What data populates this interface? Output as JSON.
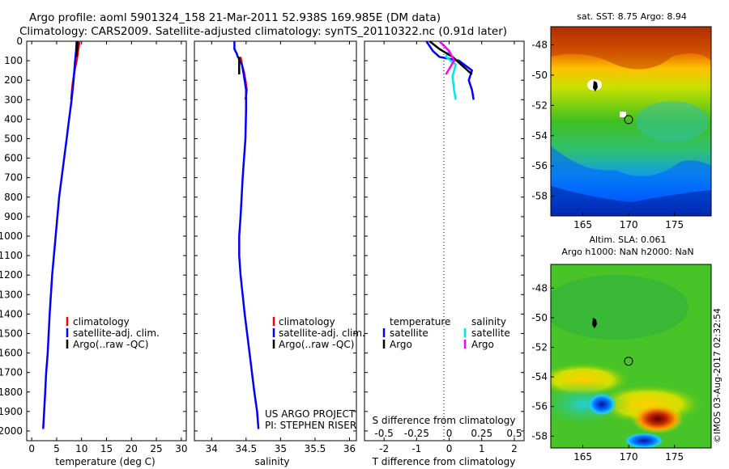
{
  "header": {
    "title_line1": "Argo profile: aoml 5901324_158 21-Mar-2011 52.938S 169.985E (DM data)",
    "title_line2": "Climatology: CARS2009. Satellite-adjusted climatology: synTS_20110322.nc (0.91d later)"
  },
  "colors": {
    "climatology": "#ff0000",
    "satellite": "#0000ff",
    "argo": "#000000",
    "sat_salinity": "#00e5e5",
    "argo_salinity": "#ff00ff"
  },
  "chart_data": [
    {
      "type": "line",
      "name": "temperature-profile",
      "xlabel": "temperature (deg C)",
      "xlim": [
        -1,
        31
      ],
      "ylim": [
        0,
        2050
      ],
      "xticks": [
        "0",
        "5",
        "10",
        "15",
        "20",
        "25",
        "30"
      ],
      "xtick_values": [
        0,
        5,
        10,
        15,
        20,
        25,
        30
      ],
      "yticks": [
        "0",
        "100",
        "200",
        "300",
        "400",
        "500",
        "600",
        "700",
        "800",
        "900",
        "1000",
        "1100",
        "1200",
        "1300",
        "1400",
        "1500",
        "1600",
        "1700",
        "1800",
        "1900",
        "2000"
      ],
      "ytick_values": [
        0,
        100,
        200,
        300,
        400,
        500,
        600,
        700,
        800,
        900,
        1000,
        1100,
        1200,
        1300,
        1400,
        1500,
        1600,
        1700,
        1800,
        1900,
        2000
      ],
      "legend": [
        "climatology",
        "satellite-adj. clim.",
        "Argo(..raw -QC)"
      ],
      "series": [
        {
          "name": "climatology",
          "color": "#ff0000",
          "x": [
            9.6,
            9.3,
            9.0,
            8.6,
            8.2,
            7.9
          ],
          "y": [
            0,
            50,
            100,
            150,
            220,
            300
          ]
        },
        {
          "name": "satellite-adj. clim.",
          "color": "#0000ff",
          "x": [
            9.0,
            8.9,
            8.7,
            8.4,
            8.0,
            7.5,
            7.0,
            6.5,
            5.5,
            4.8,
            4.1,
            3.6,
            3.2,
            2.9,
            2.7,
            2.5,
            2.3
          ],
          "y": [
            0,
            50,
            100,
            200,
            300,
            400,
            500,
            600,
            800,
            1000,
            1200,
            1400,
            1600,
            1700,
            1800,
            1900,
            1990
          ]
        },
        {
          "name": "Argo(..raw -QC)",
          "color": "#000000",
          "x": [
            9.2,
            9.1,
            9.0
          ],
          "y": [
            0,
            40,
            80
          ]
        }
      ]
    },
    {
      "type": "line",
      "name": "salinity-profile",
      "xlabel": "salinity",
      "xlim": [
        33.75,
        36.1
      ],
      "ylim": [
        0,
        2050
      ],
      "xticks": [
        "34",
        "34.5",
        "35",
        "35.5",
        "36"
      ],
      "xtick_values": [
        34,
        34.5,
        35,
        35.5,
        36
      ],
      "legend": [
        "climatology",
        "satellite-adj. clim.",
        "Argo(..raw -QC)"
      ],
      "annotation": [
        "US ARGO PROJECT",
        "PI: STEPHEN RISER"
      ],
      "series": [
        {
          "name": "climatology",
          "color": "#ff0000",
          "x": [
            34.42,
            34.44,
            34.47,
            34.49,
            34.51,
            34.49
          ],
          "y": [
            80,
            120,
            160,
            200,
            250,
            300
          ]
        },
        {
          "name": "satellite-adj. clim.",
          "color": "#0000ff",
          "x": [
            34.33,
            34.33,
            34.36,
            34.38,
            34.44,
            34.47,
            34.5,
            34.5,
            34.49,
            34.45,
            34.42,
            34.4,
            34.4,
            34.42,
            34.48,
            34.55,
            34.62,
            34.66,
            34.68
          ],
          "y": [
            0,
            40,
            60,
            80,
            120,
            180,
            250,
            350,
            500,
            700,
            900,
            1000,
            1100,
            1200,
            1400,
            1600,
            1800,
            1900,
            1990
          ]
        },
        {
          "name": "Argo(..raw -QC)",
          "color": "#000000",
          "x": [
            34.4,
            34.4,
            34.4
          ],
          "y": [
            80,
            120,
            170
          ]
        }
      ]
    },
    {
      "type": "line",
      "name": "difference-profile",
      "xlabel": "T difference from climatology",
      "xlabel_top": "S difference from climatology",
      "xlim": [
        -2.6,
        2.3
      ],
      "ylim": [
        0,
        2050
      ],
      "xticks": [
        "-2",
        "-1",
        "0",
        "1",
        "2"
      ],
      "xtick_values": [
        -2,
        -1,
        0,
        1,
        2
      ],
      "sticks": [
        "-0.5",
        "-0.25",
        "0",
        "0.25",
        "0.5"
      ],
      "stick_values": [
        -2,
        -1,
        0,
        1,
        2
      ],
      "legend_temperature": [
        "temperature",
        "satellite",
        "Argo"
      ],
      "legend_salinity": [
        "salinity",
        "satellite",
        "Argo"
      ],
      "series": [
        {
          "name": "temperature satellite",
          "color": "#0000ff",
          "x": [
            -0.7,
            -0.5,
            -0.3,
            0.3,
            0.7,
            0.6,
            0.7,
            0.75
          ],
          "y": [
            0,
            50,
            80,
            100,
            150,
            200,
            250,
            300
          ]
        },
        {
          "name": "salinity satellite",
          "color": "#00e5e5",
          "x": [
            -0.3,
            0.0,
            -0.1,
            0.2,
            0.1,
            0.15,
            0.2
          ],
          "y": [
            0,
            50,
            80,
            120,
            180,
            250,
            300
          ]
        },
        {
          "name": "temperature Argo",
          "color": "#000000",
          "x": [
            -0.6,
            -0.3,
            0.1,
            0.7
          ],
          "y": [
            0,
            40,
            80,
            170
          ]
        },
        {
          "name": "salinity Argo",
          "color": "#ff00ff",
          "x": [
            -0.3,
            0.0,
            0.15,
            -0.1
          ],
          "y": [
            0,
            50,
            100,
            170
          ]
        }
      ]
    },
    {
      "type": "heatmap",
      "name": "sst-map",
      "title": "sat. SST: 8.75 Argo: 8.94",
      "xticks": [
        "165",
        "170",
        "175"
      ],
      "xtick_values": [
        165,
        170,
        175
      ],
      "yticks": [
        "-48",
        "-50",
        "-52",
        "-54",
        "-56",
        "-58"
      ],
      "ytick_values": [
        -48,
        -50,
        -52,
        -54,
        -56,
        -58
      ],
      "xlim": [
        161.5,
        179
      ],
      "ylim": [
        -59.3,
        -46.8
      ],
      "argo_position": [
        169.985,
        -52.938
      ]
    },
    {
      "type": "heatmap",
      "name": "sla-map",
      "title_line1": "Altim. SLA: 0.061",
      "title_line2": "Argo h1000: NaN h2000: NaN",
      "xticks": [
        "165",
        "170",
        "175"
      ],
      "xtick_values": [
        165,
        170,
        175
      ],
      "yticks": [
        "-48",
        "-50",
        "-52",
        "-54",
        "-56",
        "-58"
      ],
      "ytick_values": [
        -48,
        -50,
        -52,
        -54,
        -56,
        -58
      ],
      "xlim": [
        161.5,
        179
      ],
      "ylim": [
        -58.8,
        -46.4
      ],
      "argo_position": [
        169.985,
        -52.938
      ]
    }
  ],
  "footer": {
    "credit": "©IMOS 03-Aug-2017 02:32:54"
  }
}
